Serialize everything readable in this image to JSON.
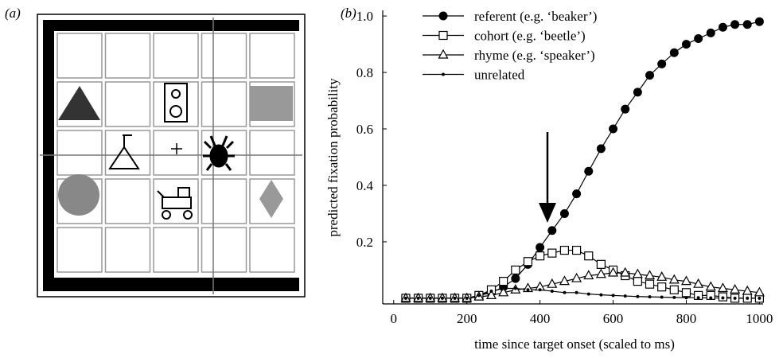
{
  "panel_labels": [
    "(a)",
    "(b)"
  ],
  "chart_data": {
    "type": "line",
    "xlabel": "time since target onset (scaled to ms)",
    "ylabel": "predicted fixation probability",
    "x": [
      33,
      67,
      100,
      133,
      167,
      200,
      233,
      267,
      300,
      333,
      367,
      400,
      433,
      467,
      500,
      533,
      567,
      600,
      633,
      667,
      700,
      733,
      767,
      800,
      833,
      867,
      900,
      933,
      967,
      1000
    ],
    "series": [
      {
        "name": "referent (e.g. ‘beaker’)",
        "color": "#000000",
        "marker": "circle",
        "values": [
          0,
          0,
          0,
          0,
          0,
          0,
          0.01,
          0.02,
          0.04,
          0.07,
          0.12,
          0.18,
          0.24,
          0.3,
          0.37,
          0.45,
          0.53,
          0.6,
          0.67,
          0.73,
          0.79,
          0.83,
          0.87,
          0.9,
          0.92,
          0.94,
          0.96,
          0.97,
          0.97,
          0.98
        ]
      },
      {
        "name": "cohort (e.g. ‘beetle’)",
        "color": "#000000",
        "marker": "square",
        "values": [
          0,
          0,
          0,
          0,
          0,
          0,
          0.01,
          0.03,
          0.06,
          0.1,
          0.13,
          0.15,
          0.16,
          0.17,
          0.17,
          0.15,
          0.12,
          0.1,
          0.08,
          0.06,
          0.05,
          0.04,
          0.03,
          0.02,
          0.01,
          0.01,
          0.005,
          0,
          0,
          0
        ]
      },
      {
        "name": "rhyme (e.g. ‘speaker’)",
        "color": "#000000",
        "marker": "triangle",
        "values": [
          0,
          0,
          0,
          0,
          0,
          0,
          0.005,
          0.01,
          0.02,
          0.03,
          0.035,
          0.04,
          0.05,
          0.06,
          0.07,
          0.08,
          0.085,
          0.09,
          0.09,
          0.085,
          0.08,
          0.075,
          0.065,
          0.06,
          0.05,
          0.04,
          0.035,
          0.03,
          0.025,
          0.02
        ]
      },
      {
        "name": "unrelated",
        "color": "#000000",
        "marker": "dot",
        "values": [
          0,
          0,
          0,
          0,
          0,
          0,
          0.01,
          0.025,
          0.035,
          0.035,
          0.03,
          0.03,
          0.025,
          0.02,
          0.02,
          0.015,
          0.012,
          0.01,
          0.008,
          0.006,
          0.005,
          0.004,
          0.003,
          0.002,
          0.002,
          0.001,
          0.001,
          0,
          0,
          0
        ]
      }
    ],
    "xlim": [
      -30,
      1010
    ],
    "xticks": [
      0,
      200,
      400,
      600,
      800,
      1000
    ],
    "ylim": [
      -0.02,
      1.02
    ],
    "yticks": [
      0.2,
      0.4,
      0.6,
      0.8,
      {
        "value": 1,
        "label": "1.0"
      }
    ],
    "legend": "upper left"
  }
}
